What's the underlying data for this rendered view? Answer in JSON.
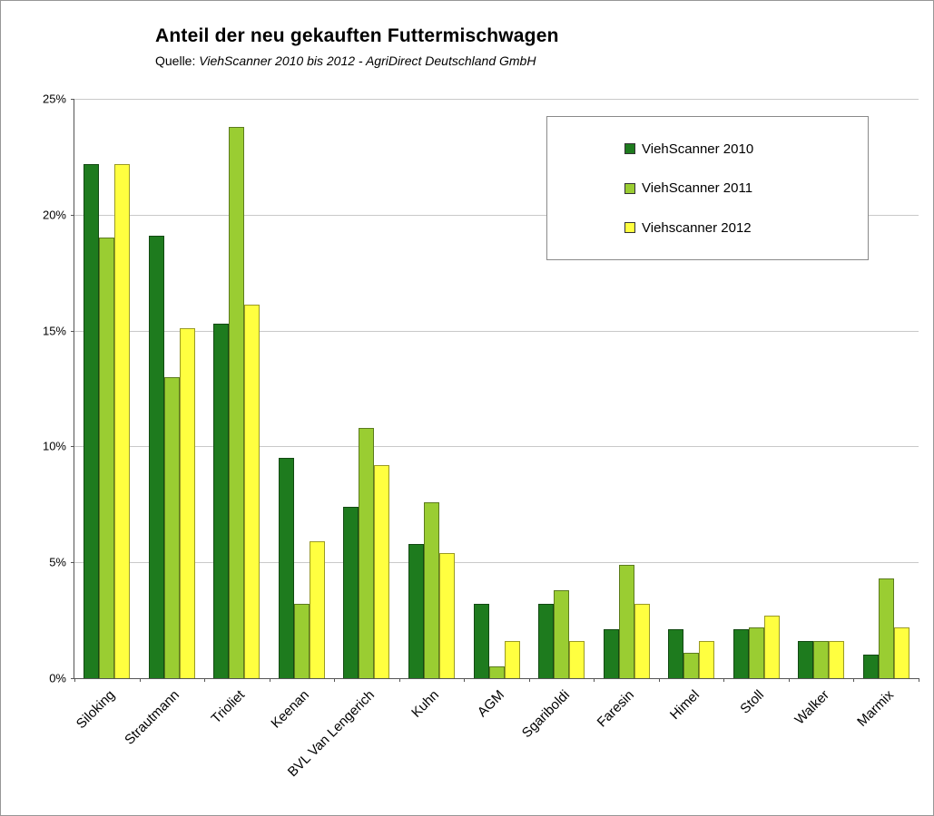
{
  "title": "Anteil der neu gekauften Futtermischwagen",
  "subtitle": {
    "prefix": "Quelle: ",
    "text": "ViehScanner 2010 bis 2012 - AgriDirect Deutschland GmbH"
  },
  "chart_data": {
    "type": "bar",
    "title": "Anteil der neu gekauften Futtermischwagen",
    "subtitle": "Quelle: ViehScanner 2010 bis 2012 - AgriDirect Deutschland GmbH",
    "xlabel": "",
    "ylabel": "",
    "ylim": [
      0,
      25
    ],
    "grid": true,
    "legend_position": "top-right",
    "yticks": [
      {
        "value": 0,
        "label": "0%"
      },
      {
        "value": 5,
        "label": "5%"
      },
      {
        "value": 10,
        "label": "10%"
      },
      {
        "value": 15,
        "label": "15%"
      },
      {
        "value": 20,
        "label": "20%"
      },
      {
        "value": 25,
        "label": "25%"
      }
    ],
    "categories": [
      "Siloking",
      "Strautmann",
      "Trioliet",
      "Keenan",
      "BVL Van Lengerich",
      "Kuhn",
      "AGM",
      "Sgariboldi",
      "Faresin",
      "Himel",
      "Stoll",
      "Walker",
      "Marmix"
    ],
    "series": [
      {
        "name": "ViehScanner 2010",
        "color": "#1e7b1e",
        "values": [
          22.2,
          19.1,
          15.3,
          9.5,
          7.4,
          5.8,
          3.2,
          3.2,
          2.1,
          2.1,
          2.1,
          1.6,
          1.0
        ]
      },
      {
        "name": "ViehScanner 2011",
        "color": "#9acd32",
        "values": [
          19.0,
          13.0,
          23.8,
          3.2,
          10.8,
          7.6,
          0.5,
          3.8,
          4.9,
          1.1,
          2.2,
          1.6,
          4.3
        ]
      },
      {
        "name": "Viehscanner 2012",
        "color": "#ffff40",
        "values": [
          22.2,
          15.1,
          16.1,
          5.9,
          9.2,
          5.4,
          1.6,
          1.6,
          3.2,
          1.6,
          2.7,
          1.6,
          2.2
        ]
      }
    ]
  }
}
